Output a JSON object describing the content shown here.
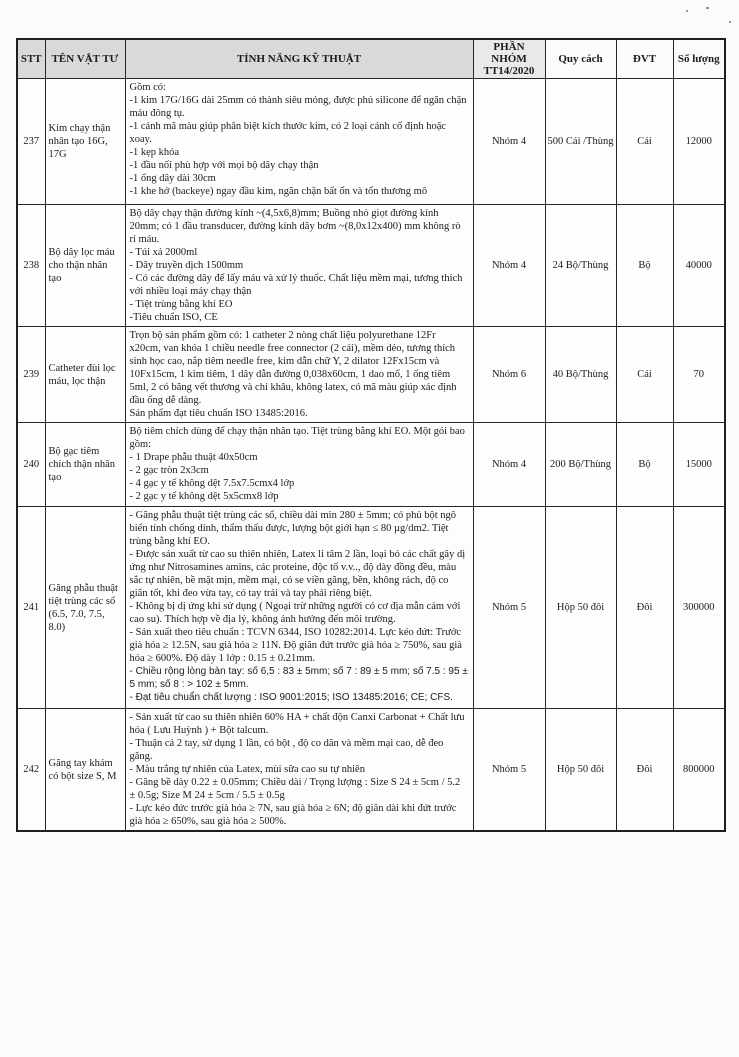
{
  "table": {
    "columns": [
      {
        "label": "STT"
      },
      {
        "label": "TÊN VẬT TƯ"
      },
      {
        "label": "TÍNH NĂNG KỸ THUẬT"
      },
      {
        "label": "PHẦN NHÓM TT14/2020"
      },
      {
        "label": "Quy cách"
      },
      {
        "label": "ĐVT"
      },
      {
        "label": "Số lượng"
      }
    ],
    "rows": [
      {
        "stt": "237",
        "name": "Kim chạy thận nhân tạo 16G, 17G",
        "spec": [
          "Gồm có:",
          "-1 kim 17G/16G dài 25mm có thành siêu mỏng, được phủ silicone để ngăn chặn máu đông tụ.",
          "-1 cánh mã màu giúp phân biệt kích thước kim, có 2 loại cánh cố định hoặc xoay.",
          "-1 kẹp khóa",
          "-1 đầu nối phù hợp với mọi bộ dây chạy thận",
          "-1 ống dây dài 30cm",
          "-1 khe hở (backeye) ngay đầu kim, ngăn chặn bất ổn và tổn thương mô"
        ],
        "sans": [],
        "group": "Nhóm 4",
        "packing": "500 Cái /Thùng",
        "unit": "Cái",
        "qty": "12000"
      },
      {
        "stt": "238",
        "name": "Bộ dây lọc máu cho thận nhân tạo",
        "spec": [
          "Bộ dây chạy thận đường kính ~(4,5x6,8)mm; Buồng nhỏ giọt đường kính 20mm; có 1 đầu transducer, đường kính dây bơm ~(8,0x12x400) mm không rò rỉ máu.",
          "- Túi xả 2000ml",
          "- Dây truyền dịch 1500mm",
          "- Có các đường dây để lấy máu và xử lý thuốc. Chất liệu mềm mại, tương thích với nhiều loại máy chạy thận",
          "- Tiệt trùng bằng khí EO",
          "-Tiêu chuẩn ISO, CE"
        ],
        "sans": [],
        "group": "Nhóm 4",
        "packing": "24 Bộ/Thùng",
        "unit": "Bộ",
        "qty": "40000"
      },
      {
        "stt": "239",
        "name": "Catheter đùi lọc máu, lọc thận",
        "spec": [
          "Trọn bộ sản phẩm gồm có: 1 catheter 2 nòng chất liệu polyurethane 12Fr x20cm, van khóa 1 chiều needle free connector (2 cái), mềm dẻo, tương thích sinh học cao, nắp tiêm needle free, kim dẫn chữ Y,  2 dilator 12Fx15cm và 10Fx15cm, 1 kim tiêm, 1 dây dẫn đường 0,038x60cm, 1 dao mổ, 1 ống tiêm 5ml, 2 có băng vết thương và chỉ khâu, không latex, có mã màu giúp xác định đầu ống dễ dàng.",
          "Sản phẩm đạt  tiêu chuẩn ISO 13485:2016."
        ],
        "sans": [],
        "group": "Nhóm 6",
        "packing": "40 Bộ/Thùng",
        "unit": "Cái",
        "qty": "70"
      },
      {
        "stt": "240",
        "name": "Bộ gạc tiêm chích thận nhân tạo",
        "spec": [
          "Bộ tiêm chích dùng để chạy thận nhân tạo. Tiệt trùng bằng khí EO. Một gói bao gồm:",
          "- 1 Drape phẫu thuật 40x50cm",
          "- 2 gạc tròn 2x3cm",
          "- 4 gạc y tế không dệt 7.5x7.5cmx4 lớp",
          "- 2 gạc y tế không dệt 5x5cmx8 lớp"
        ],
        "sans": [],
        "group": "Nhóm 4",
        "packing": "200 Bộ/Thùng",
        "unit": "Bộ",
        "qty": "15000"
      },
      {
        "stt": "241",
        "name": "Găng phẫu thuật tiệt trùng các số (6.5, 7.0, 7.5, 8.0)",
        "spec": [
          "- Găng phẫu thuật tiệt trùng các số, chiều dài min 280 ± 5mm; có phủ bột ngô biến tính chống dính, thẩm thấu được, lượng bột giới hạn ≤ 80 µg/dm2. Tiệt trùng bằng khí EO.",
          "- Được sản xuất từ cao su thiên nhiên, Latex li tâm 2 lần, loại bỏ các chất gây dị ứng như Nitrosamines amins, các proteine, độc tố v.v.., độ dày đồng đều, màu sắc tự nhiên, bề mặt mịn, mềm mại, có se viền găng, bền, không rách, độ co giãn tốt, khi đeo vừa tay, có tay trái và tay phải riêng biệt.",
          "- Không bị dị ứng khi sử dụng ( Ngoại trừ những người có cơ địa mẫn cảm với cao su). Thích hợp về địa lý, không ảnh hưởng đến môi trường.",
          "- Sản xuất theo tiêu chuẩn : TCVN 6344, ISO 10282:2014. Lực kéo đứt: Trước già hóa ≥ 12.5N, sau già hóa ≥ 11N. Độ giãn đứt trước già hóa ≥ 750%, sau già hóa ≥ 600%. Độ dày 1 lớp : 0.15 ± 0.21mm.",
          "- Chiều rộng lòng bàn tay: số 6,5 : 83 ± 5mm; số 7 : 89 ± 5 mm; số 7.5 : 95 ± 5 mm; số 8 : > 102 ± 5mm.",
          "- Đạt tiêu chuẩn chất lượng : ISO 9001:2015; ISO 13485:2016; CE; CFS."
        ],
        "sans": [
          4,
          5
        ],
        "group": "Nhóm 5",
        "packing": "Hộp 50 đôi",
        "unit": "Đôi",
        "qty": "300000"
      },
      {
        "stt": "242",
        "name": "Găng tay khám có bột size  S, M",
        "spec": [
          "- Sản xuất từ cao su thiên nhiên 60% HA + chất độn  Canxi Carbonat + Chất lưu hóa ( Lưu Huỳnh ) + Bột talcum.",
          "- Thuận cả 2 tay, sử dụng 1 lần, có bột , độ co dãn và mềm mại cao, dễ đeo găng.",
          "- Màu trắng tự nhiên của Latex, mùi sữa cao su tự nhiên",
          "- Găng bề dày 0.22 ± 0.05mm; Chiều dài / Trọng lượng : Size S 24 ± 5cm / 5.2 ± 0.5g; Size M 24 ± 5cm / 5.5 ± 0.5g",
          "- Lực kéo đức trước già hóa ≥ 7N, sau già hóa ≥ 6N; độ giãn dài khi đứt trước già hóa ≥ 650%, sau già hóa ≥ 500%."
        ],
        "sans": [],
        "group": "Nhóm 5",
        "packing": "Hộp 50 đôi",
        "unit": "Đôi",
        "qty": "800000"
      }
    ]
  }
}
